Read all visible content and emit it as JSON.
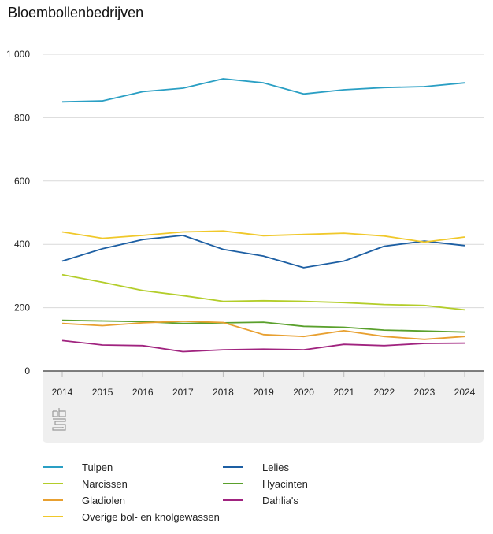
{
  "chart_data": {
    "type": "line",
    "title": "Bloembollenbedrijven",
    "xlabel": "",
    "ylabel": "",
    "ylim": [
      0,
      1000
    ],
    "yticks": [
      0,
      200,
      400,
      600,
      800,
      1000
    ],
    "ytick_labels": [
      "0",
      "200",
      "400",
      "600",
      "800",
      "1 000"
    ],
    "grid": true,
    "legend_position": "bottom",
    "x": [
      "2014",
      "2015",
      "2016",
      "2017",
      "2018",
      "2019",
      "2020",
      "2021",
      "2022",
      "2023",
      "2024"
    ],
    "series": [
      {
        "name": "Tulpen",
        "color": "#2a9fc4",
        "values": [
          850,
          853,
          882,
          893,
          923,
          910,
          875,
          888,
          895,
          898,
          910
        ]
      },
      {
        "name": "Lelies",
        "color": "#1d5fa3",
        "values": [
          347,
          386,
          415,
          428,
          384,
          363,
          326,
          347,
          394,
          410,
          396
        ]
      },
      {
        "name": "Narcissen",
        "color": "#b3cd2a",
        "values": [
          304,
          280,
          254,
          238,
          220,
          222,
          220,
          216,
          210,
          207,
          193
        ]
      },
      {
        "name": "Hyacinten",
        "color": "#5aa02c",
        "values": [
          160,
          158,
          156,
          150,
          152,
          154,
          141,
          138,
          129,
          126,
          123
        ]
      },
      {
        "name": "Gladiolen",
        "color": "#e8a030",
        "values": [
          150,
          143,
          152,
          157,
          153,
          115,
          109,
          127,
          109,
          100,
          109
        ]
      },
      {
        "name": "Dahlia's",
        "color": "#a0237f",
        "values": [
          96,
          82,
          80,
          61,
          67,
          69,
          67,
          84,
          80,
          87,
          88
        ]
      },
      {
        "name": "Overige bol- en knolgewassen",
        "color": "#f0c82a",
        "values": [
          439,
          419,
          428,
          439,
          442,
          427,
          431,
          435,
          426,
          407,
          423
        ]
      }
    ]
  },
  "legend": {
    "items": [
      {
        "label": "Tulpen",
        "color": "#2a9fc4"
      },
      {
        "label": "Lelies",
        "color": "#1d5fa3"
      },
      {
        "label": "Narcissen",
        "color": "#b3cd2a"
      },
      {
        "label": "Hyacinten",
        "color": "#5aa02c"
      },
      {
        "label": "Gladiolen",
        "color": "#e8a030"
      },
      {
        "label": "Dahlia's",
        "color": "#a0237f"
      },
      {
        "label": "Overige bol- en knolgewassen",
        "color": "#f0c82a"
      }
    ]
  },
  "logo": {
    "name": "cbs"
  }
}
